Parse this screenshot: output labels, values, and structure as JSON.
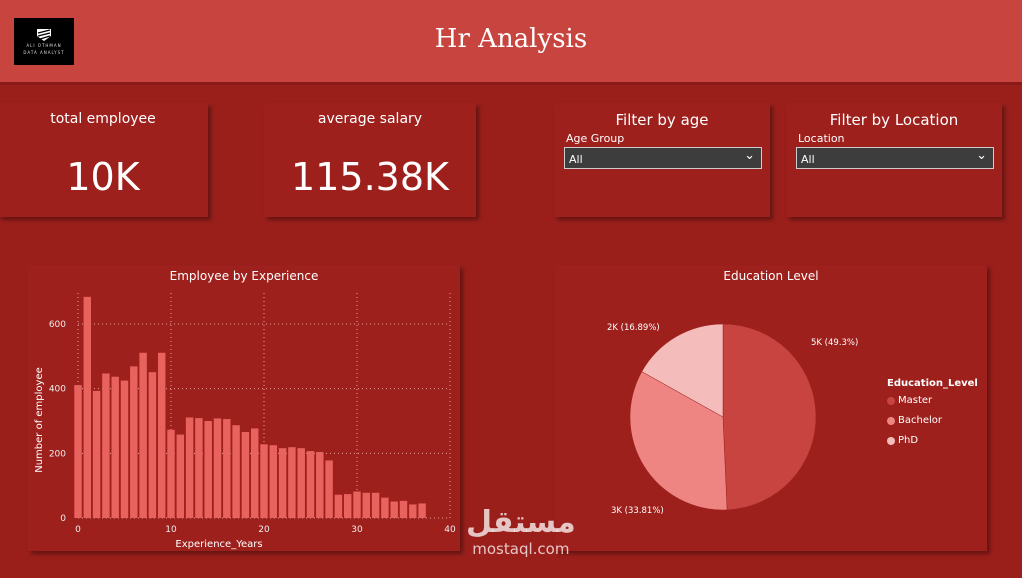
{
  "header": {
    "title": "Hr Analysis",
    "logo_text": "ALI OTHMAN",
    "logo_subtext": "DATA ANALYST"
  },
  "kpis": [
    {
      "label": "total employee",
      "value": "10K"
    },
    {
      "label": "average salary",
      "value": "115.38K"
    }
  ],
  "filters": [
    {
      "title": "Filter by age",
      "label": "Age Group",
      "value": "All"
    },
    {
      "title": "Filter by Location",
      "label": "Location",
      "value": "All"
    }
  ],
  "colors": {
    "background": "#9a1f1b",
    "header": "#c8443f",
    "bar": "#e8625e"
  },
  "chart_data": [
    {
      "type": "bar",
      "title": "Employee by Experience",
      "xlabel": "Experience_Years",
      "ylabel": "Number of employee",
      "xlim": [
        0,
        40
      ],
      "ylim": [
        0,
        700
      ],
      "xticks": [
        0,
        10,
        20,
        30,
        40
      ],
      "yticks": [
        0,
        200,
        400,
        600
      ],
      "grid": true,
      "x": [
        0,
        1,
        2,
        3,
        4,
        5,
        6,
        7,
        8,
        9,
        10,
        11,
        12,
        13,
        14,
        15,
        16,
        17,
        18,
        19,
        20,
        21,
        22,
        23,
        24,
        25,
        26,
        27,
        28,
        29,
        30,
        31,
        32,
        33,
        34,
        35,
        36,
        37
      ],
      "values": [
        411,
        684,
        393,
        447,
        437,
        425,
        469,
        511,
        451,
        511,
        273,
        258,
        311,
        309,
        300,
        308,
        306,
        287,
        266,
        277,
        228,
        225,
        216,
        219,
        216,
        207,
        204,
        178,
        72,
        74,
        82,
        78,
        78,
        63,
        51,
        53,
        42,
        45
      ]
    },
    {
      "type": "pie",
      "title": "Education Level",
      "legend_title": "Education_Level",
      "legend_position": "right",
      "slices": [
        {
          "name": "Master",
          "value": 49.3,
          "label": "5K (49.3%)",
          "color": "#c84440"
        },
        {
          "name": "Bachelor",
          "value": 33.81,
          "label": "3K (33.81%)",
          "color": "#ee8582"
        },
        {
          "name": "PhD",
          "value": 16.89,
          "label": "2K (16.89%)",
          "color": "#f4bcbb"
        }
      ]
    }
  ],
  "watermark": {
    "arabic": "مستقل",
    "latin": "mostaql.com"
  }
}
